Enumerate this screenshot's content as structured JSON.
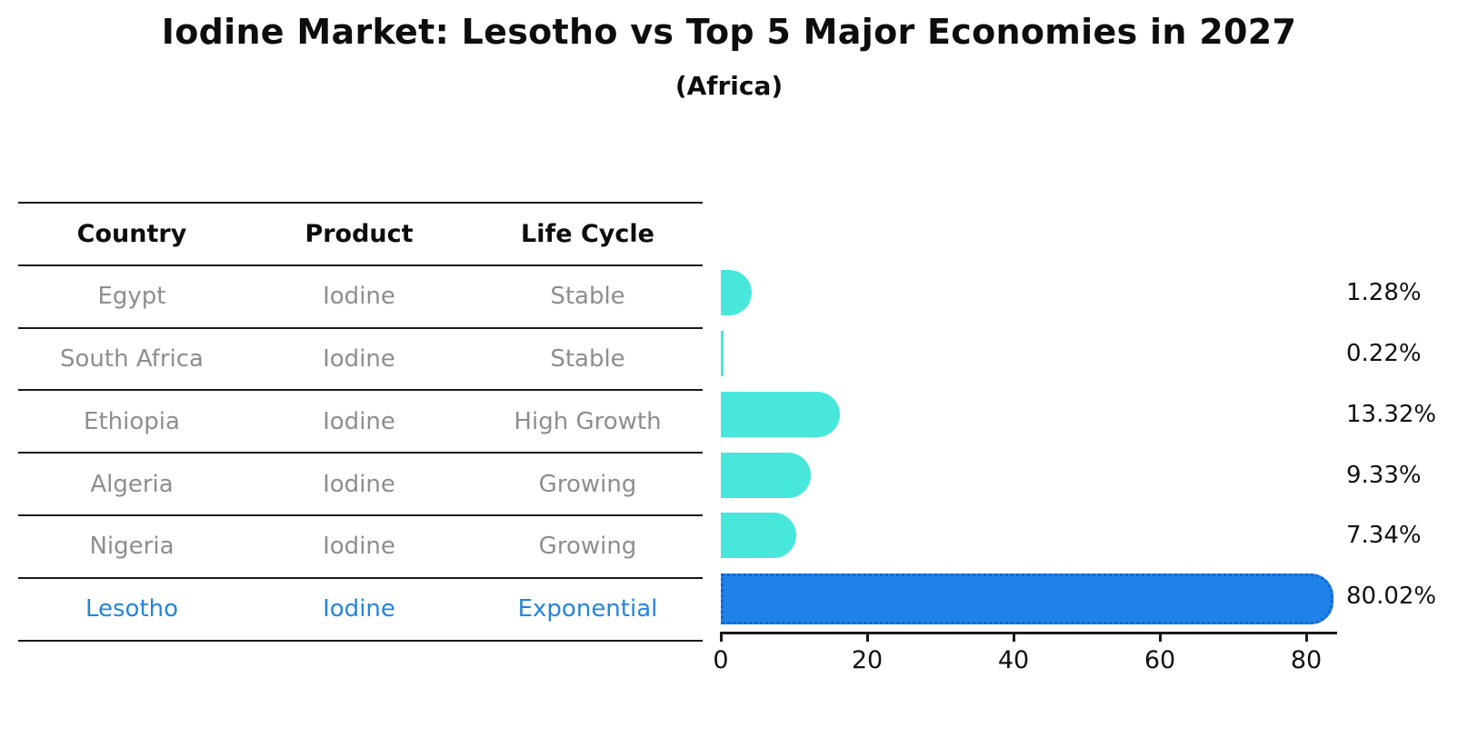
{
  "chart": {
    "title": "Iodine Market: Lesotho vs Top 5 Major Economies in 2027",
    "subtitle": "(Africa)"
  },
  "table": {
    "headers": [
      "Country",
      "Product",
      "Life Cycle"
    ],
    "rows": [
      {
        "country": "Egypt",
        "product": "Iodine",
        "life_cycle": "Stable",
        "share": 1.28,
        "share_label": "1.28%",
        "highlight": false
      },
      {
        "country": "South Africa",
        "product": "Iodine",
        "life_cycle": "Stable",
        "share": 0.22,
        "share_label": "0.22%",
        "highlight": false
      },
      {
        "country": "Ethiopia",
        "product": "Iodine",
        "life_cycle": "High Growth",
        "share": 13.32,
        "share_label": "13.32%",
        "highlight": false
      },
      {
        "country": "Algeria",
        "product": "Iodine",
        "life_cycle": "Growing",
        "share": 9.33,
        "share_label": "9.33%",
        "highlight": false
      },
      {
        "country": "Nigeria",
        "product": "Iodine",
        "life_cycle": "Growing",
        "share": 7.34,
        "share_label": "7.34%",
        "highlight": false
      },
      {
        "country": "Lesotho",
        "product": "Iodine",
        "life_cycle": "Exponential",
        "share": 80.02,
        "share_label": "80.02%",
        "highlight": true
      }
    ]
  },
  "axis": {
    "ticks": [
      "0",
      "20",
      "40",
      "60",
      "80"
    ],
    "tick_values": [
      0,
      20,
      40,
      60,
      80
    ]
  },
  "colors": {
    "bar": "#48e7db",
    "highlight_bar": "#1e82e8",
    "highlight_bar_edge": "#1266cf",
    "highlight_text": "#2585dc",
    "row_text": "#8e8e8e",
    "header_text": "#0d0d0d",
    "value_text": "#111111"
  },
  "chart_data": {
    "type": "bar",
    "orientation": "horizontal",
    "title": "Iodine Market: Lesotho vs Top 5 Major Economies in 2027",
    "subtitle": "(Africa)",
    "categories": [
      "Egypt",
      "South Africa",
      "Ethiopia",
      "Algeria",
      "Nigeria",
      "Lesotho"
    ],
    "values": [
      1.28,
      0.22,
      13.32,
      9.33,
      7.34,
      80.02
    ],
    "value_labels": [
      "1.28%",
      "0.22%",
      "13.32%",
      "9.33%",
      "7.34%",
      "80.02%"
    ],
    "xlabel": "",
    "ylabel": "",
    "xlim": [
      0,
      84
    ],
    "xticks": [
      0,
      20,
      40,
      60,
      80
    ],
    "grid": false,
    "legend": "none",
    "highlight_category": "Lesotho",
    "bar_color": "#48e7db",
    "highlight_color": "#1e82e8",
    "table_columns": [
      "Country",
      "Product",
      "Life Cycle"
    ],
    "table_rows": [
      [
        "Egypt",
        "Iodine",
        "Stable"
      ],
      [
        "South Africa",
        "Iodine",
        "Stable"
      ],
      [
        "Ethiopia",
        "Iodine",
        "High Growth"
      ],
      [
        "Algeria",
        "Iodine",
        "Growing"
      ],
      [
        "Nigeria",
        "Iodine",
        "Growing"
      ],
      [
        "Lesotho",
        "Iodine",
        "Exponential"
      ]
    ]
  }
}
